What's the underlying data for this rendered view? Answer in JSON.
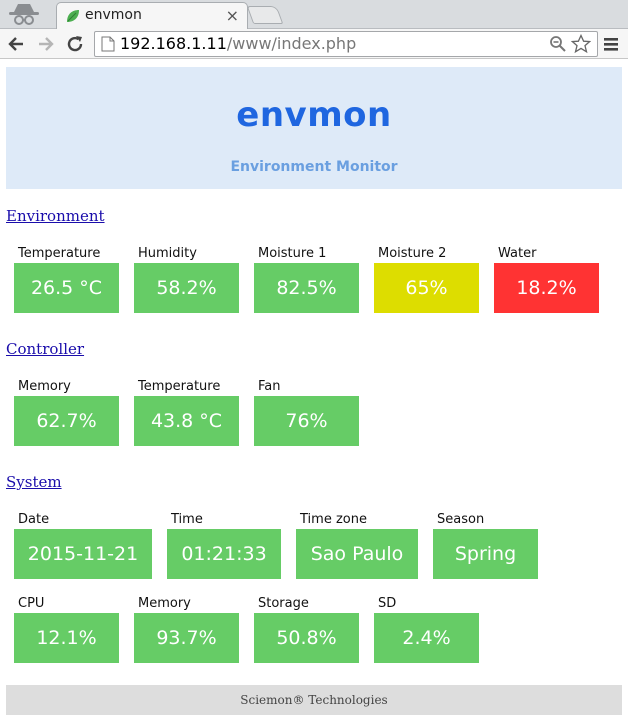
{
  "browser": {
    "tab_title": "envmon",
    "tab_close": "×",
    "url_host": "192.168.1.11",
    "url_path": "/www/index.php"
  },
  "header": {
    "title": "envmon",
    "subtitle": "Environment Monitor"
  },
  "colors": {
    "ok": "#66cc66",
    "warning": "#dddd00",
    "alert": "#ff3333"
  },
  "sections": [
    {
      "title": "Environment",
      "rows": [
        [
          {
            "label": "Temperature",
            "value": "26.5 °C",
            "status": "ok"
          },
          {
            "label": "Humidity",
            "value": "58.2%",
            "status": "ok"
          },
          {
            "label": "Moisture 1",
            "value": "82.5%",
            "status": "ok"
          },
          {
            "label": "Moisture 2",
            "value": "65%",
            "status": "warning"
          },
          {
            "label": "Water",
            "value": "18.2%",
            "status": "alert"
          }
        ]
      ]
    },
    {
      "title": "Controller",
      "rows": [
        [
          {
            "label": "Memory",
            "value": "62.7%",
            "status": "ok"
          },
          {
            "label": "Temperature",
            "value": "43.8 °C",
            "status": "ok"
          },
          {
            "label": "Fan",
            "value": "76%",
            "status": "ok"
          }
        ]
      ]
    },
    {
      "title": "System",
      "rows": [
        [
          {
            "label": "Date",
            "value": "2015-11-21",
            "status": "ok"
          },
          {
            "label": "Time",
            "value": "01:21:33",
            "status": "ok"
          },
          {
            "label": "Time zone",
            "value": "Sao Paulo",
            "status": "ok"
          },
          {
            "label": "Season",
            "value": "Spring",
            "status": "ok"
          }
        ],
        [
          {
            "label": "CPU",
            "value": "12.1%",
            "status": "ok"
          },
          {
            "label": "Memory",
            "value": "93.7%",
            "status": "ok"
          },
          {
            "label": "Storage",
            "value": "50.8%",
            "status": "ok"
          },
          {
            "label": "SD",
            "value": "2.4%",
            "status": "ok"
          }
        ]
      ]
    }
  ],
  "footer": {
    "text": "Sciemon® Technologies"
  }
}
